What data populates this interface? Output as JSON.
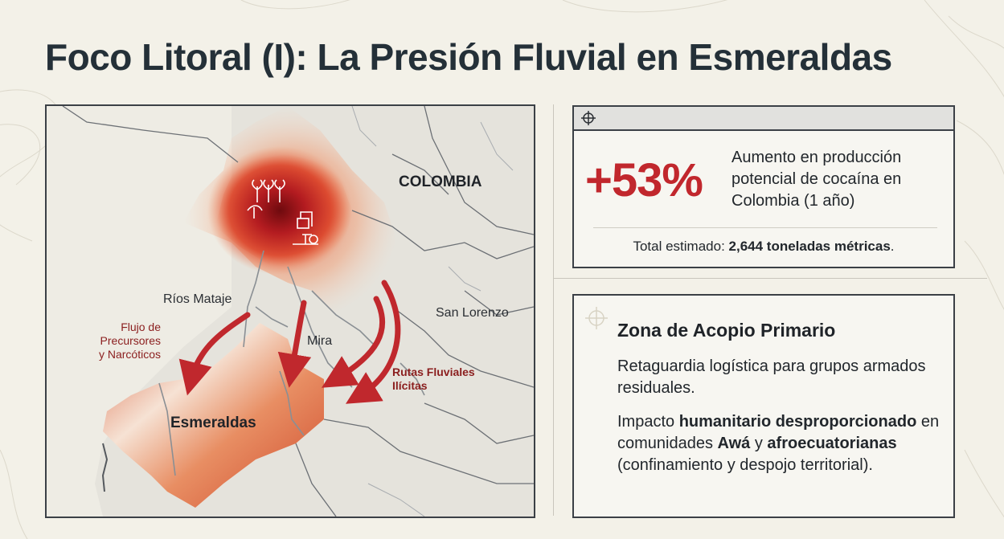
{
  "title": "Foco Litoral (I): La Presión Fluvial en Esmeraldas",
  "map": {
    "labels": {
      "colombia": "COLOMBIA",
      "rios_mataje": "Ríos Mataje",
      "san_lorenzo": "San Lorenzo",
      "mira": "Mira",
      "esmeraldas": "Esmeraldas",
      "flujo": [
        "Flujo de",
        "Precursores",
        "y Narcóticos"
      ],
      "rutas": [
        "Rutas Fluviales",
        "Ilícitas"
      ]
    },
    "colors": {
      "heat": "#c1272d",
      "arrow": "#c0282d",
      "flow_label": "#8b1e1e"
    },
    "icons": [
      "crops-icon",
      "lab-icon",
      "flow-arrow-icon"
    ]
  },
  "stat": {
    "value": "+53%",
    "description": "Aumento en producción potencial de cocaína en Colombia (1 año)",
    "total_prefix": "Total estimado: ",
    "total_value": "2,644 toneladas métricas",
    "total_suffix": "."
  },
  "zone": {
    "title": "Zona de Acopio Primario",
    "p1": "Retaguardia logística para grupos armados residuales.",
    "p2": {
      "t1": "Impacto ",
      "b1": "humanitario desproporcionado",
      "t2": " en comunidades ",
      "b2": "Awá",
      "t3": " y ",
      "b3": "afroecuatorianas",
      "t4": " (confinamiento y despojo territorial)."
    }
  }
}
